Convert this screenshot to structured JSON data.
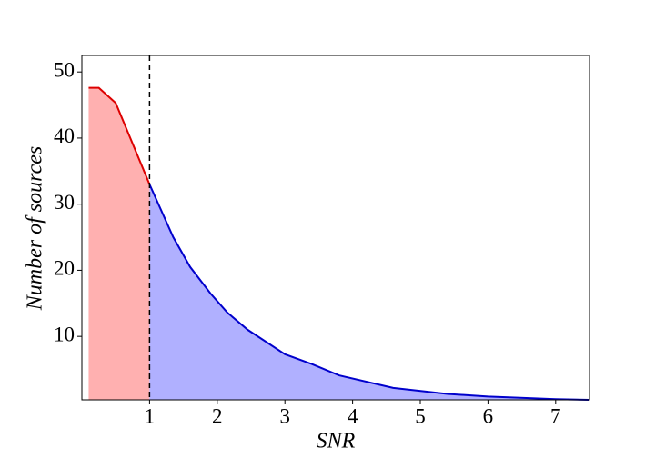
{
  "chart_data": {
    "type": "area",
    "x_label": "SNR",
    "y_label": "Number of sources",
    "xlim": [
      0,
      7.5
    ],
    "ylim": [
      0.4,
      52.5
    ],
    "xticks": [
      1,
      2,
      3,
      4,
      5,
      6,
      7
    ],
    "yticks": [
      10,
      20,
      30,
      40,
      50
    ],
    "vline": 1,
    "vline_color": "#000000",
    "series": [
      {
        "color": "#dd0000",
        "fill": "#ffb0b0",
        "x": [
          0.1,
          0.25,
          0.5,
          1
        ],
        "values": [
          47.6,
          47.6,
          45.3,
          33
        ]
      },
      {
        "color": "#0000cc",
        "fill": "#b0b0ff",
        "x": [
          1,
          1.35,
          1.6,
          1.9,
          2.15,
          2.45,
          3,
          3.4,
          3.8,
          4.6,
          5.4,
          6,
          7,
          7.5
        ],
        "values": [
          33,
          25,
          20.5,
          16.5,
          13.6,
          11,
          7.3,
          5.8,
          4.1,
          2.2,
          1.3,
          0.9,
          0.5,
          0.4
        ]
      }
    ]
  }
}
